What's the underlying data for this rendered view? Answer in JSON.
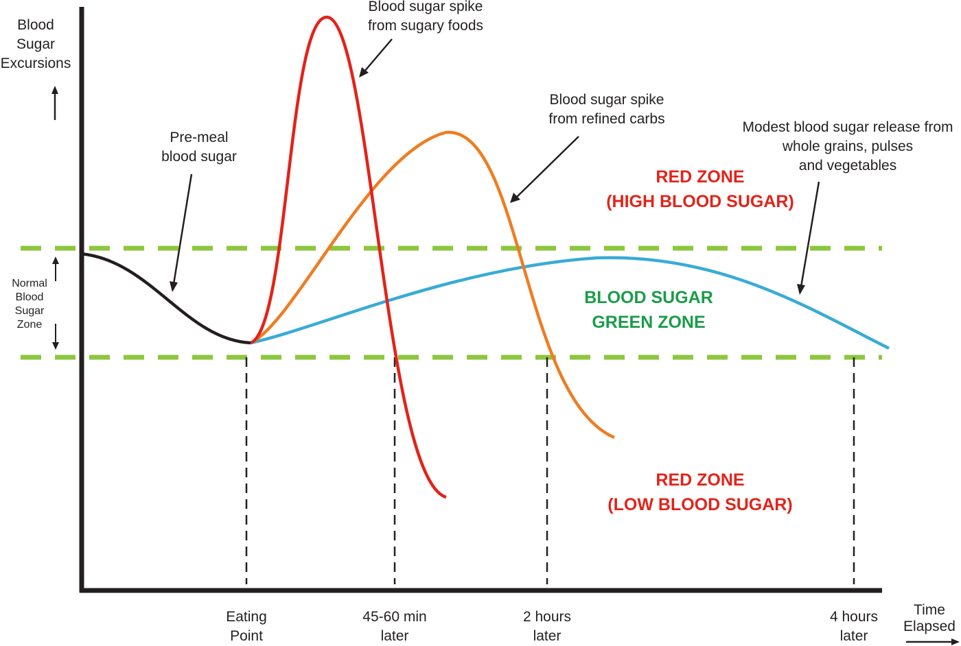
{
  "y_axis_label": [
    "Blood",
    "Sugar",
    "Excursions"
  ],
  "x_axis_label": [
    "Time",
    "Elapsed"
  ],
  "normal_zone_label": [
    "Normal",
    "Blood",
    "Sugar",
    "Zone"
  ],
  "annotations": {
    "pre_meal": [
      "Pre-meal",
      "blood sugar"
    ],
    "sugary": [
      "Blood sugar spike",
      "from sugary foods"
    ],
    "refined": [
      "Blood sugar spike",
      "from refined carbs"
    ],
    "whole": [
      "Modest blood sugar release from",
      "whole grains, pulses",
      "and vegetables"
    ]
  },
  "zones": {
    "high": [
      "RED ZONE",
      "(HIGH BLOOD SUGAR)"
    ],
    "green": [
      "BLOOD SUGAR",
      "GREEN ZONE"
    ],
    "low": [
      "RED ZONE",
      "(LOW BLOOD SUGAR)"
    ]
  },
  "time_markers": [
    [
      "Eating",
      "Point"
    ],
    [
      "45-60 min",
      "later"
    ],
    [
      "2 hours",
      "later"
    ],
    [
      "4 hours",
      "later"
    ]
  ],
  "colors": {
    "axis": "#231f20",
    "zone_bounds": "#8dc63f",
    "pre_meal_curve": "#231f20",
    "sugary_curve": "#e2231a",
    "refined_curve": "#ee7d23",
    "whole_grain_curve": "#3aabd6",
    "red_text": "#e2231a",
    "green_text": "#1a9c48"
  }
}
